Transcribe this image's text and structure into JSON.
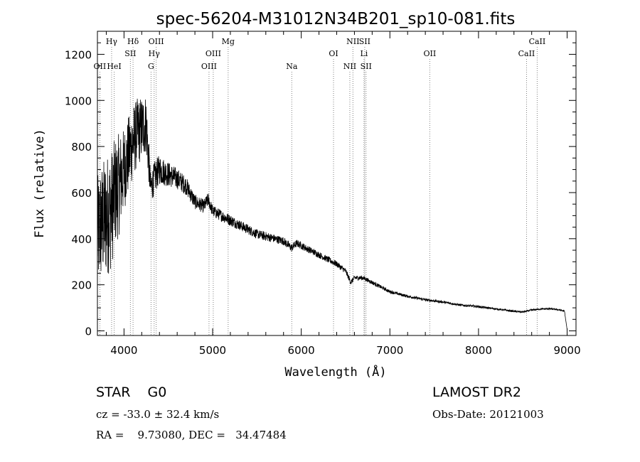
{
  "chart_data": {
    "type": "line",
    "title": "spec-56204-M31012N34B201_sp10-081.fits",
    "xlabel": "Wavelength (Å)",
    "ylabel": "Flux (relative)",
    "xlim": [
      3700,
      9100
    ],
    "ylim": [
      -20,
      1300
    ],
    "xticks": [
      4000,
      5000,
      6000,
      7000,
      8000,
      9000
    ],
    "xtick_labels": [
      "4000",
      "5000",
      "6000",
      "7000",
      "8000",
      "9000"
    ],
    "yticks": [
      0,
      200,
      400,
      600,
      800,
      1000,
      1200
    ],
    "ytick_labels": [
      "0",
      "200",
      "400",
      "600",
      "800",
      "1000",
      "1200"
    ],
    "grid": false,
    "line_color": "#000000",
    "marker_color": "#808080",
    "spectrum": {
      "x": [
        3700,
        3750,
        3800,
        3850,
        3900,
        3950,
        4000,
        4050,
        4100,
        4150,
        4200,
        4250,
        4300,
        4350,
        4400,
        4450,
        4500,
        4600,
        4700,
        4800,
        4900,
        4950,
        5000,
        5100,
        5200,
        5300,
        5400,
        5500,
        5600,
        5700,
        5800,
        5890,
        5950,
        6000,
        6100,
        6200,
        6300,
        6400,
        6500,
        6560,
        6600,
        6700,
        6800,
        6900,
        7000,
        7200,
        7400,
        7600,
        7800,
        8000,
        8200,
        8400,
        8500,
        8600,
        8700,
        8800,
        8900,
        8970,
        9000
      ],
      "y": [
        420,
        470,
        500,
        520,
        600,
        640,
        700,
        760,
        820,
        860,
        880,
        900,
        620,
        670,
        700,
        690,
        680,
        660,
        630,
        560,
        540,
        570,
        520,
        500,
        480,
        460,
        440,
        420,
        410,
        400,
        390,
        360,
        380,
        370,
        350,
        330,
        310,
        290,
        260,
        210,
        230,
        230,
        210,
        190,
        170,
        150,
        135,
        125,
        112,
        105,
        95,
        85,
        82,
        90,
        95,
        96,
        92,
        85,
        5
      ],
      "noise": [
        250,
        260,
        270,
        260,
        240,
        220,
        180,
        170,
        160,
        150,
        140,
        130,
        70,
        70,
        65,
        60,
        55,
        45,
        40,
        32,
        30,
        30,
        26,
        25,
        25,
        22,
        22,
        20,
        20,
        18,
        18,
        18,
        16,
        16,
        15,
        14,
        14,
        13,
        12,
        12,
        11,
        10,
        9,
        8,
        7,
        6,
        6,
        5,
        5,
        5,
        4,
        4,
        4,
        4,
        4,
        4,
        4,
        4,
        0
      ]
    },
    "line_markers": [
      {
        "label": "Hγ",
        "x": 3860,
        "row": 0
      },
      {
        "label": "Hδ",
        "x": 4102,
        "row": 0
      },
      {
        "label": "OIII",
        "x": 4363,
        "row": 0
      },
      {
        "label": "Mg",
        "x": 5175,
        "row": 0
      },
      {
        "label": "NII",
        "x": 6583,
        "row": 0
      },
      {
        "label": "SII",
        "x": 6716,
        "row": 0
      },
      {
        "label": "CaII",
        "x": 8662,
        "row": 0
      },
      {
        "label": "SII",
        "x": 4072,
        "row": 1
      },
      {
        "label": "Hγ",
        "x": 4340,
        "row": 1
      },
      {
        "label": "OIII",
        "x": 5007,
        "row": 1
      },
      {
        "label": "OI",
        "x": 6364,
        "row": 1
      },
      {
        "label": "Li",
        "x": 6708,
        "row": 1
      },
      {
        "label": "OII",
        "x": 7450,
        "row": 1
      },
      {
        "label": "CaII",
        "x": 8542,
        "row": 1
      },
      {
        "label": "OII",
        "x": 3727,
        "row": 2
      },
      {
        "label": "HeI",
        "x": 3889,
        "row": 2
      },
      {
        "label": "G",
        "x": 4305,
        "row": 2
      },
      {
        "label": "OIII",
        "x": 4959,
        "row": 2
      },
      {
        "label": "Na",
        "x": 5893,
        "row": 2
      },
      {
        "label": "NII",
        "x": 6548,
        "row": 2
      },
      {
        "label": "SII",
        "x": 6731,
        "row": 2
      }
    ]
  },
  "info": {
    "class": "STAR    G0",
    "survey": "LAMOST DR2",
    "redshift": "cz = -33.0 ± 32.4 km/s",
    "obs_date": "Obs-Date: 20121003",
    "coords": "RA =    9.73080, DEC =   34.47484"
  }
}
